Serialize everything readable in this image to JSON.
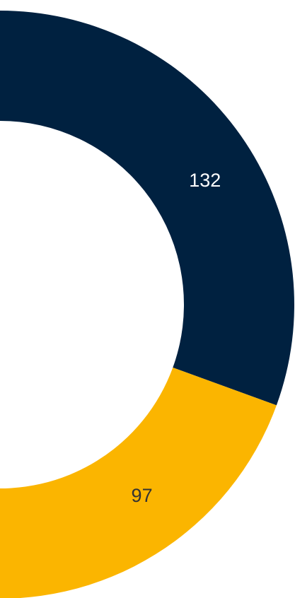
{
  "chart_data": {
    "type": "donut",
    "categories": [
      null,
      null
    ],
    "values": [
      132,
      97
    ],
    "colors": [
      "#002140",
      "#fbb500"
    ],
    "label_colors": [
      "#ffffff",
      "#333333"
    ]
  }
}
